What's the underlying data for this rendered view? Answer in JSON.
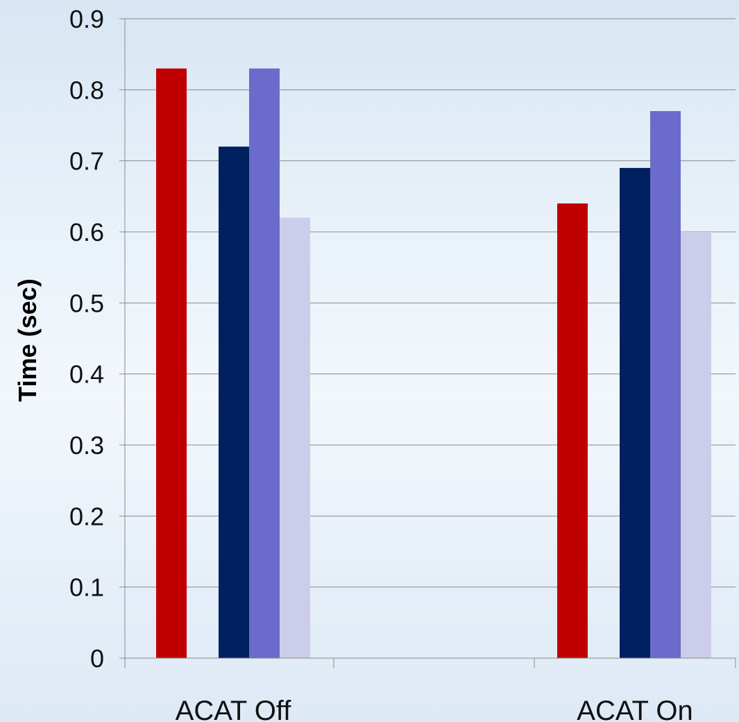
{
  "chart_data": {
    "type": "bar",
    "title": "",
    "xlabel": "",
    "ylabel": "Time (sec)",
    "ylim": [
      0,
      0.9
    ],
    "yticks": [
      "0",
      "0.1",
      "0.2",
      "0.3",
      "0.4",
      "0.5",
      "0.6",
      "0.7",
      "0.8",
      "0.9"
    ],
    "grid": true,
    "legend": "none",
    "categories": [
      "ACAT Off",
      "ACAT On"
    ],
    "series": [
      {
        "color": "#c00000",
        "values": [
          0.83,
          0.64
        ]
      },
      {
        "color": "#002060",
        "values": [
          0.72,
          0.69
        ]
      },
      {
        "color": "#6b6bcc",
        "values": [
          0.83,
          0.77
        ]
      },
      {
        "color": "#cccceb",
        "values": [
          0.62,
          0.6
        ]
      }
    ]
  }
}
